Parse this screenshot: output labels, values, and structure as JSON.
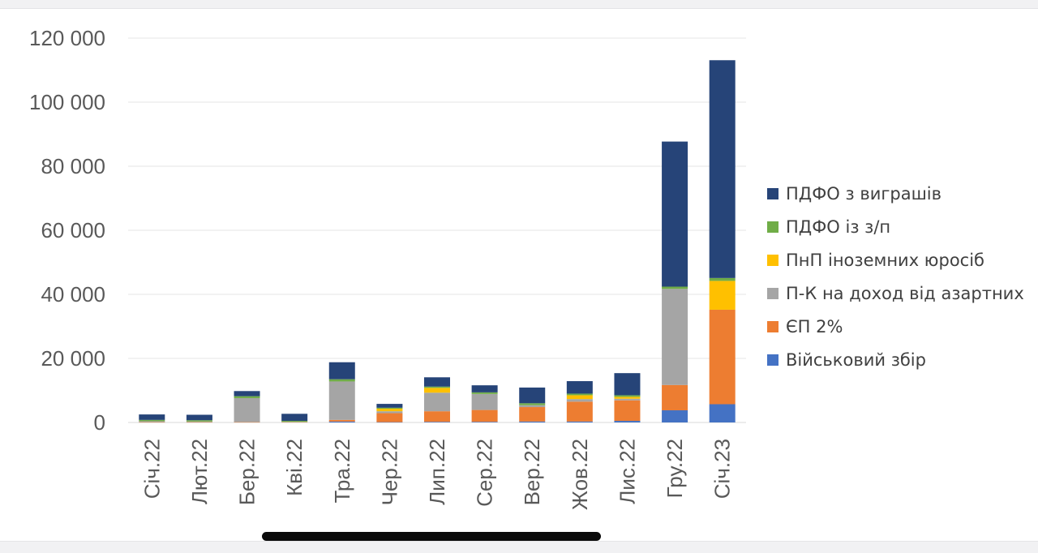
{
  "chart_data": {
    "type": "bar",
    "stacked": true,
    "categories": [
      "Січ.22",
      "Лют.22",
      "Бер.22",
      "Кві.22",
      "Тра.22",
      "Чер.22",
      "Лип.22",
      "Сер.22",
      "Вер.22",
      "Жов.22",
      "Лис.22",
      "Гру.22",
      "Січ.23"
    ],
    "ylim": [
      0,
      120000
    ],
    "yticks": [
      0,
      20000,
      40000,
      60000,
      80000,
      100000,
      120000
    ],
    "ytick_labels": [
      "0",
      "20 000",
      "40 000",
      "60 000",
      "80 000",
      "100 000",
      "120 000"
    ],
    "grid": true,
    "legend_position": "right",
    "series": [
      {
        "name": "Військовий збір",
        "color": "#4472c4",
        "values": [
          0,
          0,
          0,
          0,
          300,
          100,
          200,
          200,
          300,
          300,
          500,
          3800,
          5700
        ]
      },
      {
        "name": "ЄП 2%",
        "color": "#ed7d31",
        "values": [
          100,
          100,
          100,
          100,
          500,
          2800,
          3300,
          3700,
          4500,
          6200,
          6400,
          7900,
          29500
        ]
      },
      {
        "name": "П-К на доход від азартних",
        "color": "#a5a5a5",
        "values": [
          300,
          200,
          7500,
          100,
          12000,
          600,
          5800,
          5000,
          600,
          800,
          500,
          30000,
          0
        ]
      },
      {
        "name": "ПнП іноземних юросіб",
        "color": "#ffc000",
        "values": [
          0,
          0,
          0,
          0,
          0,
          800,
          1500,
          0,
          0,
          1200,
          600,
          0,
          9000
        ]
      },
      {
        "name": "ПДФО із з/п",
        "color": "#70ad47",
        "values": [
          400,
          400,
          600,
          300,
          700,
          300,
          400,
          500,
          600,
          500,
          500,
          700,
          900
        ]
      },
      {
        "name": "ПДФО з виграшів",
        "color": "#264478",
        "values": [
          1700,
          1700,
          1600,
          2200,
          5300,
          1200,
          2900,
          2200,
          4900,
          3900,
          6900,
          45300,
          68000
        ]
      }
    ]
  }
}
